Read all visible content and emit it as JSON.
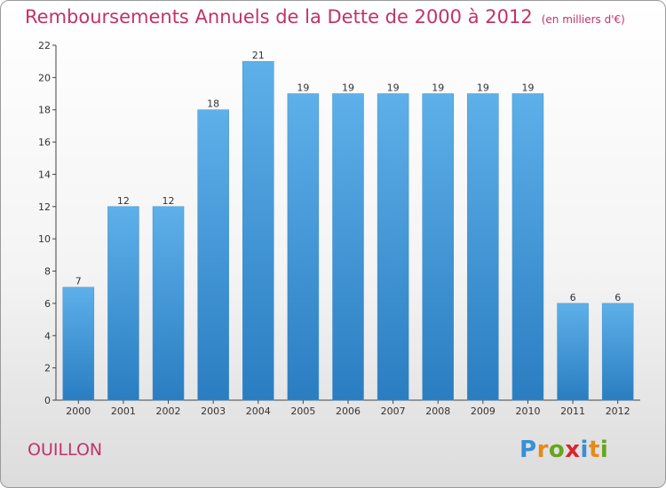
{
  "header": {
    "title": "Remboursements Annuels de la Dette de 2000 à 2012",
    "unit": "(en milliers d'€)"
  },
  "footer": {
    "commune": "OUILLON",
    "logo": [
      "P",
      "r",
      "o",
      "x",
      "i",
      "t",
      "i"
    ],
    "logo_colors": [
      "#3a8fd6",
      "#e38b1a",
      "#66a51e",
      "#d8272f",
      "#3a8fd6",
      "#e38b1a",
      "#66a51e"
    ]
  },
  "chart_data": {
    "type": "bar",
    "title": "Remboursements Annuels de la Dette de 2000 à 2012",
    "categories": [
      "2000",
      "2001",
      "2002",
      "2003",
      "2004",
      "2005",
      "2006",
      "2007",
      "2008",
      "2009",
      "2010",
      "2011",
      "2012"
    ],
    "values": [
      7,
      12,
      12,
      18,
      21,
      19,
      19,
      19,
      19,
      19,
      19,
      6,
      6
    ],
    "ylim": [
      0,
      22
    ],
    "yticks": [
      0,
      2,
      4,
      6,
      8,
      10,
      12,
      14,
      16,
      18,
      20,
      22
    ],
    "grid": false,
    "bar_color": "#4a9fe0",
    "xlabel": "",
    "ylabel": ""
  }
}
